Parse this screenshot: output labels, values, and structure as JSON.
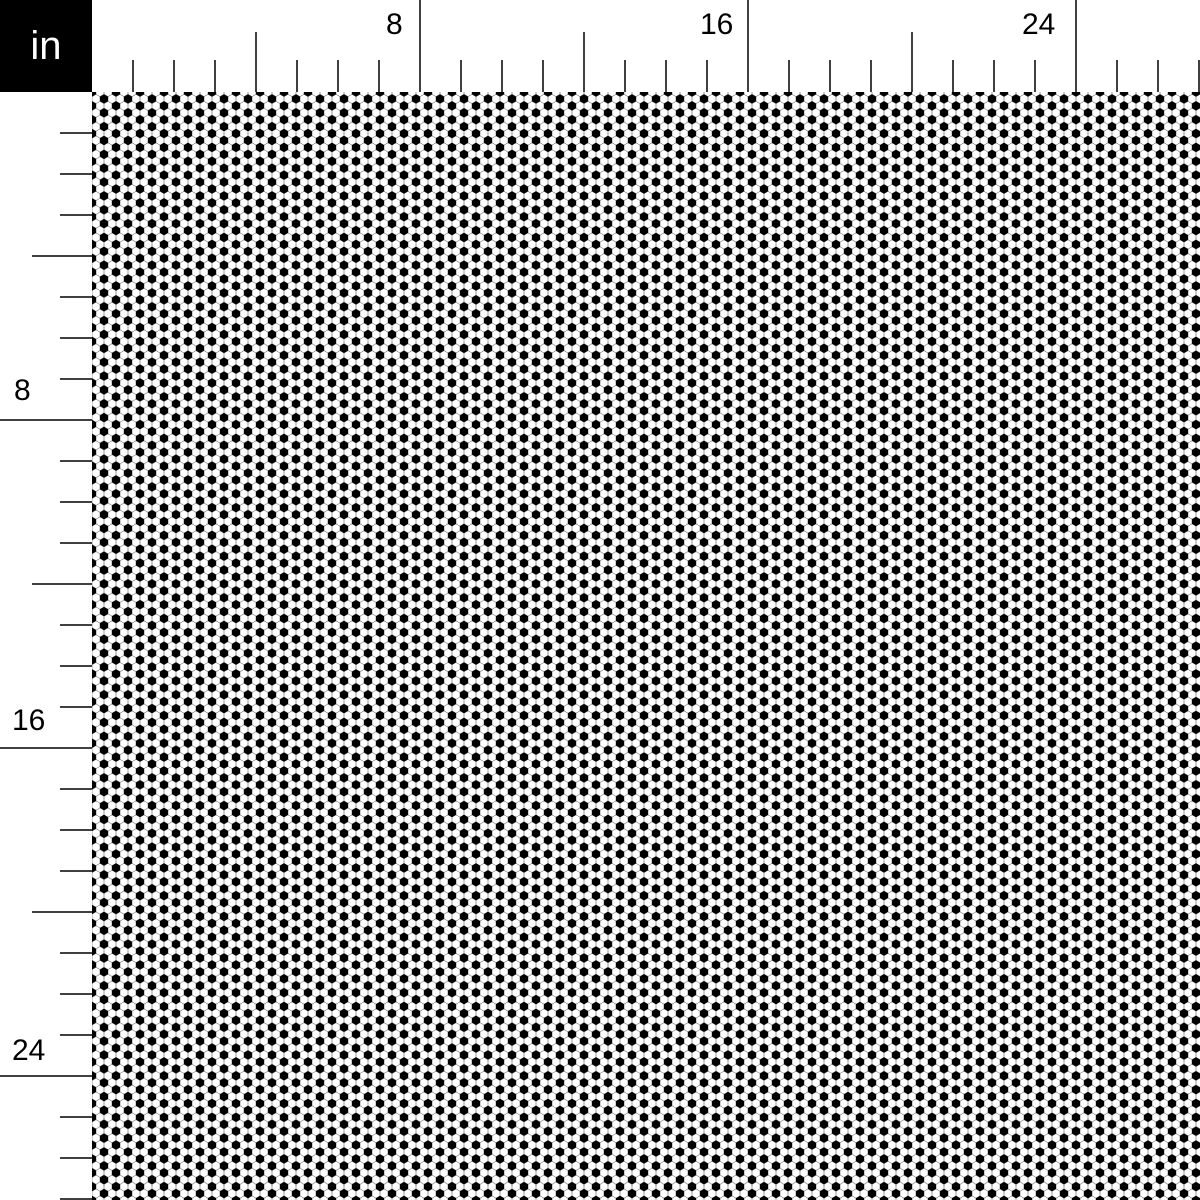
{
  "unit_label": "in",
  "ruler": {
    "top_labels": [
      "8",
      "16",
      "24"
    ],
    "left_labels": [
      "8",
      "16",
      "24"
    ]
  },
  "pattern": {
    "name": "hexagon soccer-ball print",
    "colors": {
      "dark": "#000000",
      "light": "#ffffff"
    }
  }
}
